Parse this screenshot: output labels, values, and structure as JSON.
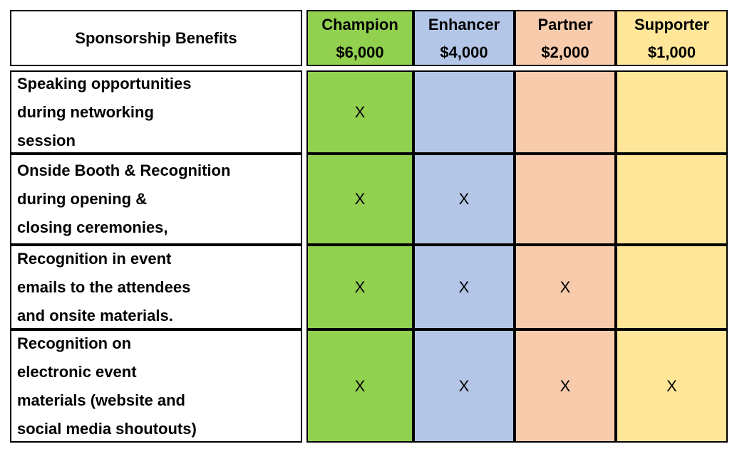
{
  "table": {
    "header": "Sponsorship Benefits",
    "tiers": [
      {
        "name": "Champion",
        "price": "$6,000",
        "color": "#92d050"
      },
      {
        "name": "Enhancer",
        "price": "$4,000",
        "color": "#b4c6e7"
      },
      {
        "name": "Partner",
        "price": "$2,000",
        "color": "#f8cbad"
      },
      {
        "name": "Supporter",
        "price": "$1,000",
        "color": "#ffe699"
      }
    ],
    "rows": [
      {
        "benefit": [
          "Speaking opportunities",
          "during networking",
          "session"
        ],
        "cells": [
          "X",
          null,
          null,
          null
        ]
      },
      {
        "benefit": [
          "Onside Booth & Recognition",
          "during opening &",
          "closing ceremonies,"
        ],
        "cells": [
          "X",
          "X",
          null,
          null
        ]
      },
      {
        "benefit": [
          "Recognition in event",
          "emails to the attendees",
          "and onsite materials."
        ],
        "cells": [
          "X",
          "X",
          "X",
          null
        ]
      },
      {
        "benefit": [
          "Recognition on",
          "electronic event",
          "materials (website and",
          "social media shoutouts)"
        ],
        "cells": [
          "X",
          "X",
          "X",
          "X"
        ]
      }
    ]
  }
}
